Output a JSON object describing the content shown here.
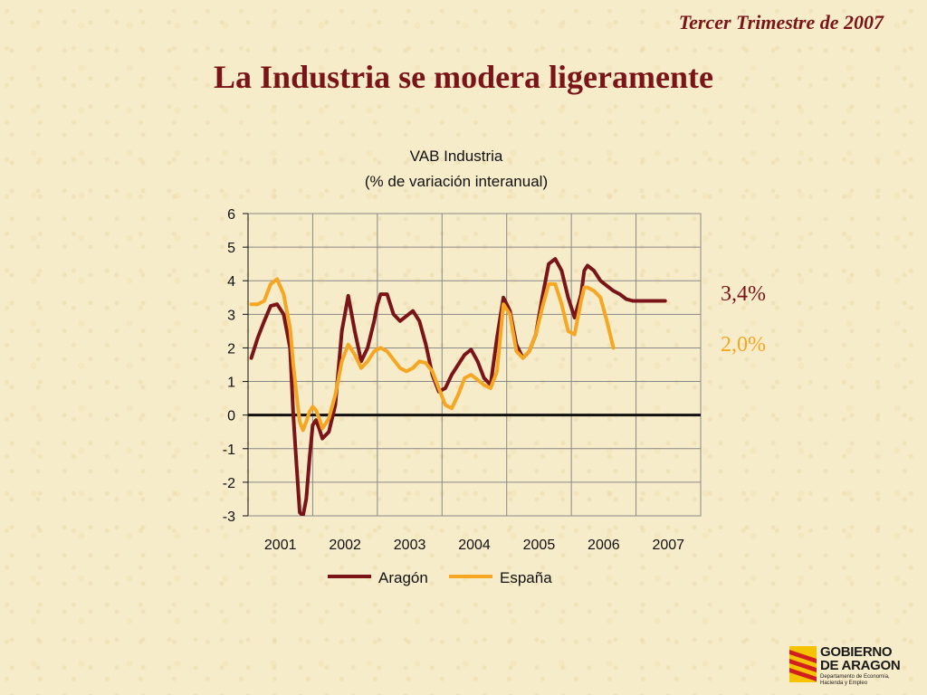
{
  "header": {
    "subtitle": "Tercer Trimestre de 2007",
    "title": "La Industria se modera ligeramente"
  },
  "callouts": {
    "aragon_value": "3,4%",
    "espana_value": "2,0%"
  },
  "logo": {
    "line1": "GOBIERNO",
    "line2": "DE ARAGON",
    "sub1": "Departamento de Economía,",
    "sub2": "Hacienda y Empleo"
  },
  "colors": {
    "aragon": "#7a1418",
    "espana": "#f5a623",
    "title": "#7a1418"
  },
  "chart_data": {
    "type": "line",
    "title": "VAB Industria",
    "subtitle": "(% de variación interanual)",
    "xlabel": "",
    "ylabel": "",
    "ylim": [
      -3,
      6
    ],
    "xlim": [
      2000.85,
      2007.85
    ],
    "yticks": [
      6,
      5,
      4,
      3,
      2,
      1,
      0,
      -1,
      -2,
      -3
    ],
    "xtick_labels": [
      "2001",
      "2002",
      "2003",
      "2004",
      "2005",
      "2006",
      "2007"
    ],
    "grid": true,
    "legend_position": "bottom",
    "series": [
      {
        "name": "Aragón",
        "color": "#7a1418",
        "x": [
          2000.9,
          2001.0,
          2001.1,
          2001.2,
          2001.3,
          2001.4,
          2001.5,
          2001.55,
          2001.6,
          2001.65,
          2001.7,
          2001.75,
          2001.8,
          2001.85,
          2001.9,
          2001.95,
          2002.0,
          2002.1,
          2002.2,
          2002.3,
          2002.4,
          2002.5,
          2002.6,
          2002.7,
          2002.75,
          2002.8,
          2002.85,
          2002.9,
          2003.0,
          2003.1,
          2003.2,
          2003.3,
          2003.4,
          2003.5,
          2003.6,
          2003.7,
          2003.8,
          2003.9,
          2004.0,
          2004.1,
          2004.2,
          2004.3,
          2004.4,
          2004.5,
          2004.6,
          2004.7,
          2004.8,
          2004.9,
          2005.0,
          2005.1,
          2005.2,
          2005.3,
          2005.4,
          2005.5,
          2005.6,
          2005.7,
          2005.8,
          2005.9,
          2006.0,
          2006.05,
          2006.1,
          2006.2,
          2006.3,
          2006.4,
          2006.5,
          2006.6,
          2006.7,
          2006.8,
          2006.9,
          2007.0,
          2007.1,
          2007.2,
          2007.3
        ],
        "values": [
          1.7,
          2.3,
          2.8,
          3.25,
          3.3,
          3.0,
          2.0,
          0.0,
          -1.5,
          -2.9,
          -3.0,
          -2.5,
          -1.3,
          -0.3,
          -0.15,
          -0.4,
          -0.7,
          -0.5,
          0.3,
          2.5,
          3.55,
          2.5,
          1.6,
          2.0,
          2.4,
          2.8,
          3.3,
          3.6,
          3.6,
          3.0,
          2.8,
          2.95,
          3.1,
          2.8,
          2.1,
          1.2,
          0.7,
          0.8,
          1.2,
          1.5,
          1.8,
          1.95,
          1.6,
          1.1,
          0.9,
          2.3,
          3.5,
          3.1,
          2.1,
          1.7,
          1.9,
          2.4,
          3.5,
          4.5,
          4.65,
          4.3,
          3.5,
          2.9,
          3.6,
          4.3,
          4.45,
          4.3,
          4.0,
          3.85,
          3.7,
          3.6,
          3.45,
          3.4,
          3.4,
          3.4,
          3.4,
          3.4,
          3.4
        ]
      },
      {
        "name": "España",
        "color": "#f5a623",
        "x": [
          2000.9,
          2001.0,
          2001.1,
          2001.2,
          2001.3,
          2001.4,
          2001.5,
          2001.55,
          2001.6,
          2001.65,
          2001.7,
          2001.75,
          2001.8,
          2001.85,
          2001.9,
          2001.95,
          2002.0,
          2002.1,
          2002.2,
          2002.3,
          2002.4,
          2002.5,
          2002.6,
          2002.7,
          2002.8,
          2002.9,
          2003.0,
          2003.1,
          2003.2,
          2003.3,
          2003.4,
          2003.5,
          2003.6,
          2003.7,
          2003.8,
          2003.9,
          2004.0,
          2004.1,
          2004.2,
          2004.3,
          2004.4,
          2004.5,
          2004.6,
          2004.7,
          2004.8,
          2004.9,
          2005.0,
          2005.1,
          2005.2,
          2005.3,
          2005.4,
          2005.5,
          2005.6,
          2005.7,
          2005.8,
          2005.9,
          2006.0,
          2006.05,
          2006.1,
          2006.2,
          2006.3,
          2006.4,
          2006.5
        ],
        "values": [
          3.3,
          3.3,
          3.4,
          3.9,
          4.05,
          3.6,
          2.6,
          1.5,
          0.6,
          -0.2,
          -0.45,
          -0.2,
          0.1,
          0.25,
          0.15,
          -0.1,
          -0.4,
          -0.1,
          0.6,
          1.6,
          2.1,
          1.8,
          1.4,
          1.6,
          1.9,
          2.0,
          1.9,
          1.65,
          1.4,
          1.3,
          1.4,
          1.6,
          1.55,
          1.3,
          0.8,
          0.3,
          0.2,
          0.6,
          1.1,
          1.2,
          1.05,
          0.9,
          0.8,
          1.3,
          3.3,
          3.0,
          1.9,
          1.7,
          1.9,
          2.4,
          3.2,
          3.9,
          3.9,
          3.3,
          2.5,
          2.4,
          3.4,
          3.8,
          3.8,
          3.7,
          3.5,
          2.8,
          2.0
        ]
      }
    ]
  }
}
